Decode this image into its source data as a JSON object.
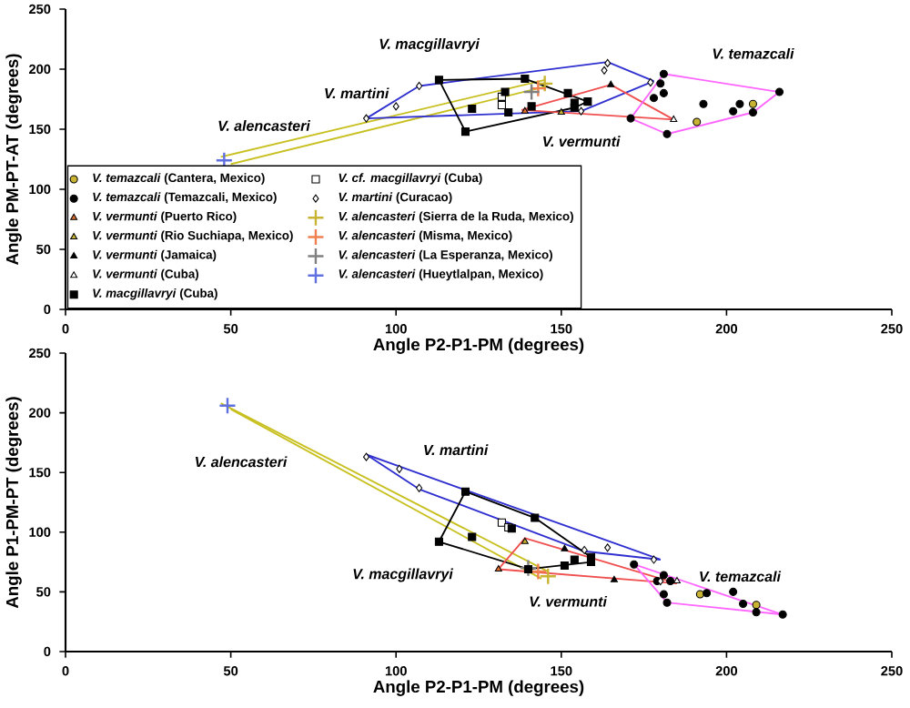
{
  "chart_data": [
    {
      "type": "scatter",
      "xlabel": "Angle P2-P1-PM (degrees)",
      "ylabel": "Angle PM-PT-AT (degrees)",
      "xlim": [
        0,
        250
      ],
      "ylim": [
        0,
        250
      ],
      "xticks": [
        0,
        50,
        100,
        150,
        200,
        250
      ],
      "yticks": [
        0,
        50,
        100,
        150,
        200,
        250
      ],
      "legend": "bottom left",
      "series": [
        {
          "type": "line",
          "color": "#c8c020",
          "x": [
            47,
            145
          ],
          "values": [
            127,
            191
          ]
        },
        {
          "type": "line",
          "color": "#c8c020",
          "x": [
            50,
            146
          ],
          "values": [
            121,
            186
          ]
        },
        {
          "type": "line",
          "color": "#3030d0",
          "x": [
            91,
            107,
            164,
            178
          ],
          "values": [
            159,
            186,
            206,
            190
          ]
        },
        {
          "type": "line",
          "color": "#3030d0",
          "x": [
            91,
            156,
            178
          ],
          "values": [
            159,
            165,
            190
          ]
        },
        {
          "type": "line",
          "color": "#000000",
          "x": [
            113,
            139,
            158
          ],
          "values": [
            191,
            192,
            173
          ]
        },
        {
          "type": "line",
          "color": "#000000",
          "x": [
            113,
            121,
            154,
            158
          ],
          "values": [
            191,
            148,
            168,
            173
          ]
        },
        {
          "type": "line",
          "color": "#f05050",
          "x": [
            138,
            165,
            184
          ],
          "values": [
            166,
            187,
            158
          ]
        },
        {
          "type": "line",
          "color": "#f05050",
          "x": [
            138,
            184
          ],
          "values": [
            166,
            158
          ]
        },
        {
          "type": "line",
          "color": "#ff66ff",
          "x": [
            171,
            181,
            216
          ],
          "values": [
            159,
            196,
            181
          ]
        },
        {
          "type": "line",
          "color": "#ff66ff",
          "x": [
            171,
            182,
            208,
            216
          ],
          "values": [
            159,
            146,
            164,
            181
          ]
        },
        {
          "name": "*V. temazcali* (Cantera, Mexico)",
          "marker": "circle",
          "color": "#c8b432",
          "x": [
            208,
            191
          ],
          "values": [
            171,
            156
          ]
        },
        {
          "name": "*V. temazcali* (Temazcali, Mexico)",
          "marker": "circle",
          "color": "#000000",
          "x": [
            181,
            180,
            181,
            178,
            193,
            202,
            204,
            208,
            216,
            182,
            171
          ],
          "values": [
            196,
            188,
            180,
            176,
            171,
            165,
            171,
            164,
            181,
            146,
            159
          ]
        },
        {
          "name": "*V. vermunti* (Puerto Rico)",
          "marker": "triangle",
          "color": "#e07030",
          "x": [
            139
          ],
          "values": [
            165
          ]
        },
        {
          "name": "*V. vermunti* (Rio Suchiapa, Mexico)",
          "marker": "triangle",
          "color": "#c8b432",
          "x": [
            150
          ],
          "values": [
            164
          ]
        },
        {
          "name": "*V. vermunti* (Jamaica)",
          "marker": "triangle",
          "color": "#000000",
          "x": [
            165
          ],
          "values": [
            187
          ]
        },
        {
          "name": "*V. vermunti* (Cuba)",
          "marker": "triangle",
          "color": "#ffffff",
          "x": [
            184
          ],
          "values": [
            158
          ]
        },
        {
          "name": "*V. macgillavryi* (Cuba)",
          "marker": "square",
          "color": "#000000",
          "x": [
            113,
            139,
            133,
            123,
            121,
            134,
            141,
            152,
            154,
            154,
            158
          ],
          "values": [
            191,
            192,
            181,
            167,
            148,
            164,
            169,
            180,
            172,
            168,
            173
          ]
        },
        {
          "name": "*V. cf. macgillavryi* (Cuba)",
          "marker": "square",
          "color": "#ffffff",
          "x": [
            132,
            132
          ],
          "values": [
            177,
            170
          ]
        },
        {
          "name": "*V. martini* (Curacao)",
          "marker": "diamond",
          "color": "#ffffff",
          "x": [
            91,
            100,
            107,
            164,
            163,
            177,
            156
          ],
          "values": [
            159,
            169,
            186,
            205,
            199,
            189,
            165
          ]
        },
        {
          "name": "*V. alencasteri* (Sierra de la Ruda, Mexico)",
          "marker": "cross",
          "color": "#c8b432",
          "x": [
            145
          ],
          "values": [
            188
          ]
        },
        {
          "name": "*V. alencasteri* (Misma, Mexico)",
          "marker": "cross",
          "color": "#f08050",
          "x": [
            143
          ],
          "values": [
            184
          ]
        },
        {
          "name": "*V. alencasteri* (La Esperanza, Mexico)",
          "marker": "cross",
          "color": "#808080",
          "x": [
            141
          ],
          "values": [
            181
          ]
        },
        {
          "name": "*V. alencasteri* (Hueytlalpan, Mexico)",
          "marker": "cross",
          "color": "#6070e0",
          "x": [
            48
          ],
          "values": [
            124
          ]
        }
      ],
      "annotations": [
        "V. alencasteri",
        "V. martini",
        "V. macgillavryi",
        "V. vermunti",
        "V. temazcali"
      ]
    },
    {
      "type": "scatter",
      "xlabel": "Angle P2-P1-PM (degrees)",
      "ylabel": "Angle P1-PM-PT (degrees)",
      "xlim": [
        0,
        250
      ],
      "ylim": [
        0,
        250
      ],
      "xticks": [
        0,
        50,
        100,
        150,
        200,
        250
      ],
      "yticks": [
        0,
        50,
        100,
        150,
        200,
        250
      ],
      "series": [
        {
          "type": "line",
          "color": "#c8c020",
          "x": [
            47,
            146
          ],
          "values": [
            208,
            67
          ]
        },
        {
          "type": "line",
          "color": "#c8c020",
          "x": [
            50,
            144
          ],
          "values": [
            203,
            61
          ]
        },
        {
          "type": "line",
          "color": "#3030d0",
          "x": [
            91,
            180
          ],
          "values": [
            165,
            77
          ]
        },
        {
          "type": "line",
          "color": "#3030d0",
          "x": [
            91,
            107,
            157,
            180
          ],
          "values": [
            165,
            136,
            84,
            77
          ]
        },
        {
          "type": "line",
          "color": "#000000",
          "x": [
            113,
            121,
            142,
            159
          ],
          "values": [
            92,
            134,
            112,
            79
          ]
        },
        {
          "type": "line",
          "color": "#000000",
          "x": [
            113,
            140,
            159
          ],
          "values": [
            92,
            69,
            75
          ]
        },
        {
          "type": "line",
          "color": "#f05050",
          "x": [
            131,
            139,
            185
          ],
          "values": [
            69,
            95,
            57
          ]
        },
        {
          "type": "line",
          "color": "#f05050",
          "x": [
            131,
            185
          ],
          "values": [
            69,
            57
          ]
        },
        {
          "type": "line",
          "color": "#ff66ff",
          "x": [
            172,
            217
          ],
          "values": [
            73,
            31
          ]
        },
        {
          "type": "line",
          "color": "#ff66ff",
          "x": [
            172,
            182,
            217
          ],
          "values": [
            73,
            41,
            31
          ]
        },
        {
          "marker": "circle",
          "color": "#c8b432",
          "x": [
            192,
            209
          ],
          "values": [
            48,
            39
          ]
        },
        {
          "marker": "circle",
          "color": "#000000",
          "x": [
            172,
            181,
            179,
            183,
            181,
            182,
            194,
            202,
            205,
            209,
            217
          ],
          "values": [
            73,
            64,
            59,
            59,
            48,
            41,
            49,
            50,
            40,
            33,
            31
          ]
        },
        {
          "marker": "triangle",
          "color": "#e07030",
          "x": [
            131
          ],
          "values": [
            69
          ]
        },
        {
          "marker": "triangle",
          "color": "#c8b432",
          "x": [
            139
          ],
          "values": [
            92
          ]
        },
        {
          "marker": "triangle",
          "color": "#000000",
          "x": [
            151,
            166
          ],
          "values": [
            86,
            60
          ]
        },
        {
          "marker": "triangle",
          "color": "#ffffff",
          "x": [
            185
          ],
          "values": [
            59
          ]
        },
        {
          "marker": "square",
          "color": "#000000",
          "x": [
            113,
            121,
            123,
            142,
            135,
            140,
            151,
            154,
            159,
            159
          ],
          "values": [
            92,
            134,
            96,
            112,
            103,
            69,
            72,
            77,
            75,
            79
          ]
        },
        {
          "marker": "square",
          "color": "#ffffff",
          "x": [
            132,
            134
          ],
          "values": [
            108,
            104
          ]
        },
        {
          "marker": "diamond",
          "color": "#ffffff",
          "x": [
            91,
            101,
            107,
            157,
            164,
            178,
            180
          ],
          "values": [
            163,
            153,
            137,
            85,
            87,
            77,
            59
          ]
        },
        {
          "marker": "cross",
          "color": "#c8b432",
          "x": [
            146
          ],
          "values": [
            63
          ]
        },
        {
          "marker": "cross",
          "color": "#f08050",
          "x": [
            143
          ],
          "values": [
            67
          ]
        },
        {
          "marker": "cross",
          "color": "#808080",
          "x": [
            140
          ],
          "values": [
            70
          ]
        },
        {
          "marker": "cross",
          "color": "#6070e0",
          "x": [
            49
          ],
          "values": [
            206
          ]
        }
      ],
      "annotations": [
        "V. alencasteri",
        "V. martini",
        "V. macgillavryi",
        "V. vermunti",
        "V. temazcali"
      ]
    }
  ]
}
